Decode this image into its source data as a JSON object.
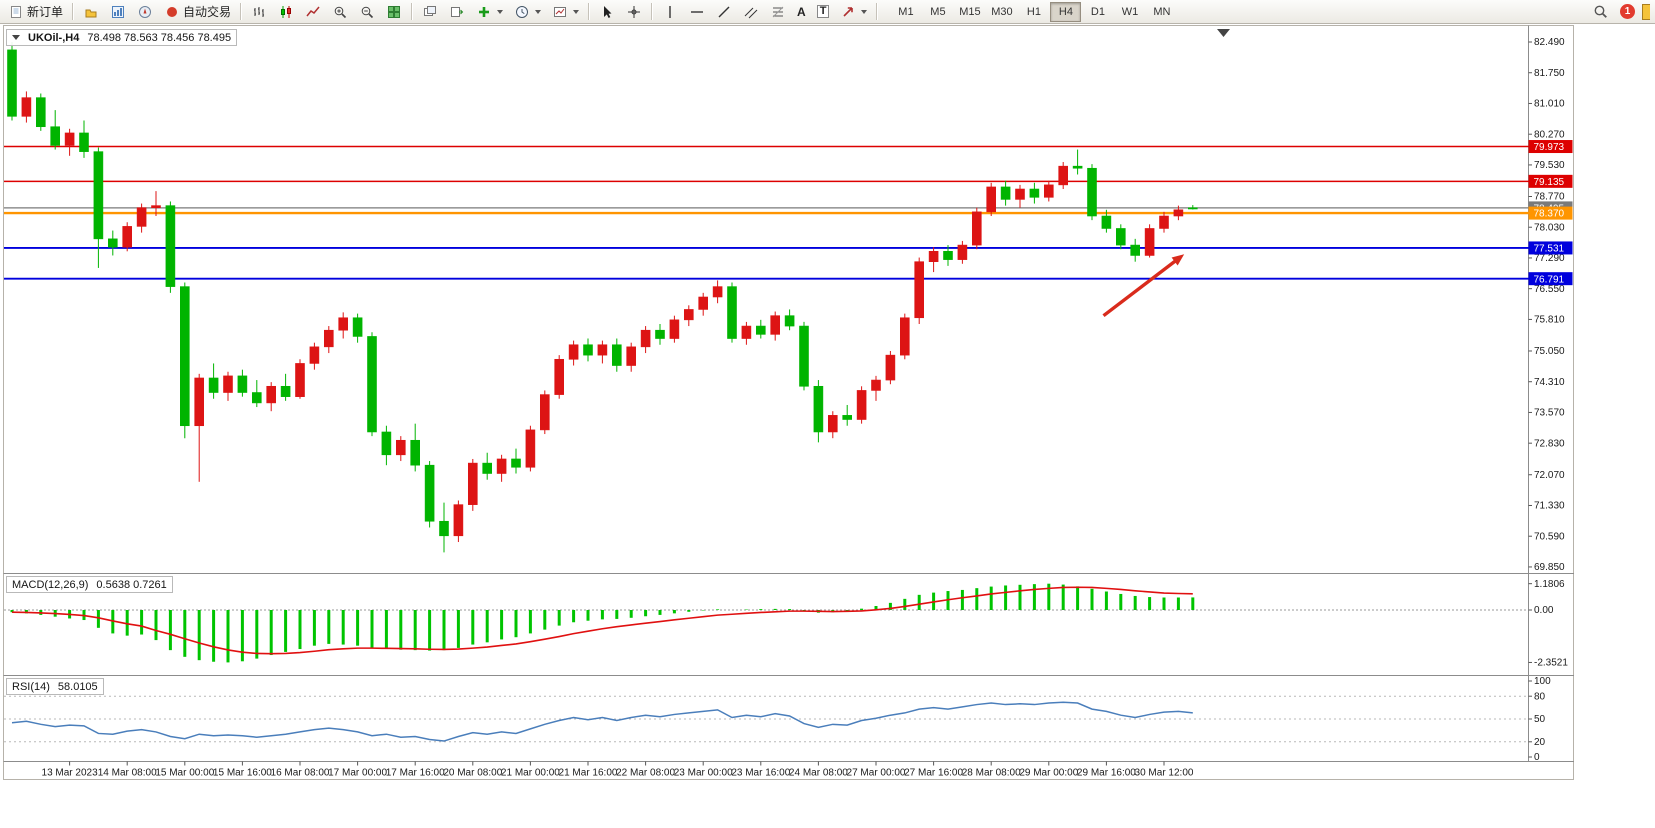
{
  "toolbar": {
    "new_order_label": "新订单",
    "auto_trading_label": "自动交易",
    "text_tool_label": "A",
    "label_tool_label": "T",
    "timeframes": [
      "M1",
      "M5",
      "M15",
      "M30",
      "H1",
      "H4",
      "D1",
      "W1",
      "MN"
    ],
    "active_timeframe": "H4",
    "notification_count": "1"
  },
  "chart_data": [
    {
      "type": "candlestick",
      "title": "UKOil-,H4",
      "ohlc_text": "78.498 78.563 78.456 78.495",
      "open": 78.498,
      "high": 78.563,
      "low": 78.456,
      "close": 78.495,
      "up_color": "#dd1414",
      "down_color": "#00b400",
      "grid": false,
      "ylim": [
        69.7,
        82.83
      ],
      "price_axis_labels": [
        "82.490",
        "81.750",
        "81.010",
        "80.270",
        "79.530",
        "78.770",
        "78.030",
        "77.290",
        "76.550",
        "75.810",
        "75.050",
        "74.310",
        "73.570",
        "72.830",
        "72.070",
        "71.330",
        "70.590",
        "69.850"
      ],
      "time_axis_labels": [
        "13 Mar 2023",
        "14 Mar 08:00",
        "15 Mar 00:00",
        "15 Mar 16:00",
        "16 Mar 08:00",
        "17 Mar 00:00",
        "17 Mar 16:00",
        "20 Mar 08:00",
        "21 Mar 00:00",
        "21 Mar 16:00",
        "22 Mar 08:00",
        "23 Mar 00:00",
        "23 Mar 16:00",
        "24 Mar 08:00",
        "27 Mar 00:00",
        "27 Mar 16:00",
        "28 Mar 08:00",
        "29 Mar 00:00",
        "29 Mar 16:00",
        "30 Mar 12:00"
      ],
      "first_tick_index": 4,
      "tick_step": 4,
      "candles": [
        [
          82.3,
          82.49,
          80.6,
          80.7
        ],
        [
          80.7,
          81.3,
          80.55,
          81.15
        ],
        [
          81.15,
          81.25,
          80.35,
          80.45
        ],
        [
          80.45,
          80.85,
          79.9,
          80.0
        ],
        [
          80.0,
          80.4,
          79.75,
          80.3
        ],
        [
          80.3,
          80.6,
          79.7,
          79.85
        ],
        [
          79.85,
          79.95,
          77.05,
          77.75
        ],
        [
          77.75,
          77.95,
          77.35,
          77.55
        ],
        [
          77.55,
          78.15,
          77.45,
          78.05
        ],
        [
          78.05,
          78.6,
          77.9,
          78.5
        ],
        [
          78.5,
          78.9,
          78.3,
          78.55
        ],
        [
          78.55,
          78.65,
          76.45,
          76.6
        ],
        [
          76.6,
          76.7,
          72.95,
          73.25
        ],
        [
          73.25,
          74.5,
          71.9,
          74.4
        ],
        [
          74.4,
          74.75,
          73.9,
          74.05
        ],
        [
          74.05,
          74.55,
          73.85,
          74.45
        ],
        [
          74.45,
          74.6,
          73.95,
          74.05
        ],
        [
          74.05,
          74.35,
          73.7,
          73.8
        ],
        [
          73.8,
          74.3,
          73.6,
          74.2
        ],
        [
          74.2,
          74.5,
          73.85,
          73.95
        ],
        [
          73.95,
          74.85,
          73.9,
          74.75
        ],
        [
          74.75,
          75.25,
          74.6,
          75.15
        ],
        [
          75.15,
          75.65,
          75.0,
          75.55
        ],
        [
          75.55,
          75.98,
          75.35,
          75.85
        ],
        [
          75.85,
          75.95,
          75.25,
          75.4
        ],
        [
          75.4,
          75.5,
          73.0,
          73.1
        ],
        [
          73.1,
          73.25,
          72.3,
          72.55
        ],
        [
          72.55,
          73.0,
          72.4,
          72.9
        ],
        [
          72.9,
          73.3,
          72.15,
          72.3
        ],
        [
          72.3,
          72.4,
          70.8,
          70.95
        ],
        [
          70.95,
          71.4,
          70.2,
          70.6
        ],
        [
          70.6,
          71.45,
          70.45,
          71.35
        ],
        [
          71.35,
          72.45,
          71.2,
          72.35
        ],
        [
          72.35,
          72.6,
          71.95,
          72.1
        ],
        [
          72.1,
          72.55,
          71.9,
          72.45
        ],
        [
          72.45,
          72.7,
          72.1,
          72.25
        ],
        [
          72.25,
          73.25,
          72.15,
          73.15
        ],
        [
          73.15,
          74.1,
          73.05,
          74.0
        ],
        [
          74.0,
          74.95,
          73.9,
          74.85
        ],
        [
          74.85,
          75.3,
          74.7,
          75.2
        ],
        [
          75.2,
          75.35,
          74.8,
          74.95
        ],
        [
          74.95,
          75.3,
          74.75,
          75.2
        ],
        [
          75.2,
          75.35,
          74.55,
          74.7
        ],
        [
          74.7,
          75.25,
          74.55,
          75.15
        ],
        [
          75.15,
          75.65,
          75.0,
          75.55
        ],
        [
          75.55,
          75.7,
          75.2,
          75.35
        ],
        [
          75.35,
          75.9,
          75.25,
          75.8
        ],
        [
          75.8,
          76.15,
          75.65,
          76.05
        ],
        [
          76.05,
          76.45,
          75.9,
          76.35
        ],
        [
          76.35,
          76.75,
          76.2,
          76.6
        ],
        [
          76.6,
          76.7,
          75.25,
          75.35
        ],
        [
          75.35,
          75.75,
          75.2,
          75.65
        ],
        [
          75.65,
          75.8,
          75.35,
          75.45
        ],
        [
          75.45,
          76.0,
          75.3,
          75.9
        ],
        [
          75.9,
          76.05,
          75.55,
          75.65
        ],
        [
          75.65,
          75.75,
          74.1,
          74.2
        ],
        [
          74.2,
          74.35,
          72.85,
          73.1
        ],
        [
          73.1,
          73.6,
          72.95,
          73.5
        ],
        [
          73.5,
          73.75,
          73.25,
          73.4
        ],
        [
          73.4,
          74.2,
          73.3,
          74.1
        ],
        [
          74.1,
          74.45,
          73.85,
          74.35
        ],
        [
          74.35,
          75.05,
          74.25,
          74.95
        ],
        [
          74.95,
          75.95,
          74.85,
          75.85
        ],
        [
          75.85,
          77.3,
          75.7,
          77.2
        ],
        [
          77.2,
          77.55,
          76.95,
          77.45
        ],
        [
          77.45,
          77.6,
          77.1,
          77.25
        ],
        [
          77.25,
          77.7,
          77.15,
          77.6
        ],
        [
          77.6,
          78.5,
          77.5,
          78.4
        ],
        [
          78.4,
          79.1,
          78.3,
          79.0
        ],
        [
          79.0,
          79.15,
          78.55,
          78.7
        ],
        [
          78.7,
          79.05,
          78.5,
          78.95
        ],
        [
          78.95,
          79.1,
          78.6,
          78.75
        ],
        [
          78.75,
          79.15,
          78.65,
          79.05
        ],
        [
          79.05,
          79.6,
          78.95,
          79.5
        ],
        [
          79.5,
          79.9,
          79.3,
          79.45
        ],
        [
          79.45,
          79.55,
          78.2,
          78.3
        ],
        [
          78.3,
          78.45,
          77.9,
          78.0
        ],
        [
          78.0,
          78.1,
          77.5,
          77.6
        ],
        [
          77.6,
          77.75,
          77.2,
          77.35
        ],
        [
          77.35,
          78.1,
          77.3,
          78.0
        ],
        [
          78.0,
          78.4,
          77.9,
          78.3
        ],
        [
          78.3,
          78.55,
          78.2,
          78.45
        ],
        [
          78.498,
          78.563,
          78.456,
          78.495
        ]
      ],
      "hlines": [
        {
          "value": 79.973,
          "label": "79.973",
          "color": "#dd0000",
          "width": 1.5
        },
        {
          "value": 79.135,
          "label": "79.135",
          "color": "#dd0000",
          "width": 1.5
        },
        {
          "value": 78.495,
          "label": "78.495",
          "color": "#7a7a7a",
          "width": 1.2
        },
        {
          "value": 78.37,
          "label": "78.370",
          "color": "#ff9500",
          "width": 2.4
        },
        {
          "value": 77.531,
          "label": "77.531",
          "color": "#0000dd",
          "width": 1.8
        },
        {
          "value": 76.791,
          "label": "76.791",
          "color": "#0000dd",
          "width": 1.8
        }
      ],
      "arrow": {
        "from_index": 75.8,
        "from_price": 75.9,
        "to_index": 81.4,
        "to_price": 77.38,
        "color": "#d92b1c"
      }
    },
    {
      "type": "bar",
      "name": "MACD(12,26,9)",
      "values_text": "0.5638 0.7261",
      "macd_value": 0.5638,
      "signal_value": 0.7261,
      "ylim": [
        -2.3521,
        1.1806
      ],
      "axis_labels": [
        "1.1806",
        "0.00",
        "-2.3521"
      ],
      "histogram_color": "#00c400",
      "signal_color": "#e01010",
      "histogram": [
        -0.1,
        -0.15,
        -0.22,
        -0.3,
        -0.38,
        -0.45,
        -0.8,
        -1.05,
        -1.15,
        -1.1,
        -1.35,
        -1.8,
        -2.1,
        -2.25,
        -2.32,
        -2.35,
        -2.3,
        -2.18,
        -2.02,
        -1.88,
        -1.75,
        -1.6,
        -1.52,
        -1.55,
        -1.6,
        -1.7,
        -1.75,
        -1.78,
        -1.8,
        -1.82,
        -1.8,
        -1.7,
        -1.55,
        -1.45,
        -1.32,
        -1.22,
        -1.05,
        -0.88,
        -0.7,
        -0.55,
        -0.48,
        -0.42,
        -0.4,
        -0.35,
        -0.28,
        -0.22,
        -0.15,
        -0.08,
        -0.02,
        0.03,
        0.0,
        0.02,
        0.04,
        0.05,
        0.04,
        -0.05,
        -0.12,
        -0.1,
        -0.04,
        0.06,
        0.18,
        0.32,
        0.5,
        0.68,
        0.78,
        0.85,
        0.9,
        0.98,
        1.05,
        1.1,
        1.13,
        1.16,
        1.18,
        1.14,
        1.06,
        0.95,
        0.83,
        0.72,
        0.63,
        0.58,
        0.56,
        0.56,
        0.5638
      ],
      "signal": [
        -0.1,
        -0.11,
        -0.13,
        -0.16,
        -0.2,
        -0.25,
        -0.35,
        -0.49,
        -0.62,
        -0.72,
        -0.92,
        -1.09,
        -1.29,
        -1.48,
        -1.65,
        -1.79,
        -1.89,
        -1.95,
        -1.96,
        -1.95,
        -1.91,
        -1.85,
        -1.78,
        -1.74,
        -1.71,
        -1.71,
        -1.72,
        -1.73,
        -1.74,
        -1.76,
        -1.77,
        -1.75,
        -1.71,
        -1.66,
        -1.59,
        -1.52,
        -1.42,
        -1.31,
        -1.19,
        -1.06,
        -0.95,
        -0.84,
        -0.75,
        -0.67,
        -0.59,
        -0.52,
        -0.44,
        -0.37,
        -0.3,
        -0.23,
        -0.19,
        -0.15,
        -0.11,
        -0.08,
        -0.05,
        -0.05,
        -0.06,
        -0.07,
        -0.06,
        -0.04,
        0.01,
        0.07,
        0.16,
        0.26,
        0.36,
        0.46,
        0.55,
        0.63,
        0.72,
        0.79,
        0.86,
        0.92,
        0.97,
        1.01,
        1.02,
        1.01,
        0.97,
        0.92,
        0.86,
        0.81,
        0.76,
        0.74,
        0.7261
      ]
    },
    {
      "type": "line",
      "name": "RSI(14)",
      "value_text": "58.0105",
      "value": 58.0105,
      "ylim": [
        0,
        100
      ],
      "levels": [
        80,
        50,
        20
      ],
      "axis_labels": [
        "100",
        "80",
        "50",
        "20",
        "0"
      ],
      "line_color": "#4a7ebb",
      "values": [
        45,
        47,
        43,
        40,
        42,
        41,
        31,
        30,
        34,
        36,
        33,
        27,
        24,
        30,
        28,
        29,
        28,
        26,
        28,
        30,
        33,
        36,
        38,
        36,
        33,
        28,
        30,
        26,
        27,
        23,
        21,
        27,
        32,
        30,
        33,
        31,
        37,
        43,
        48,
        52,
        49,
        52,
        48,
        52,
        55,
        53,
        56,
        58,
        60,
        62,
        52,
        55,
        53,
        57,
        54,
        44,
        39,
        43,
        42,
        48,
        51,
        55,
        58,
        63,
        65,
        63,
        66,
        69,
        71,
        69,
        70,
        69,
        71,
        72,
        71,
        63,
        60,
        55,
        52,
        56,
        59,
        60,
        58
      ]
    }
  ]
}
